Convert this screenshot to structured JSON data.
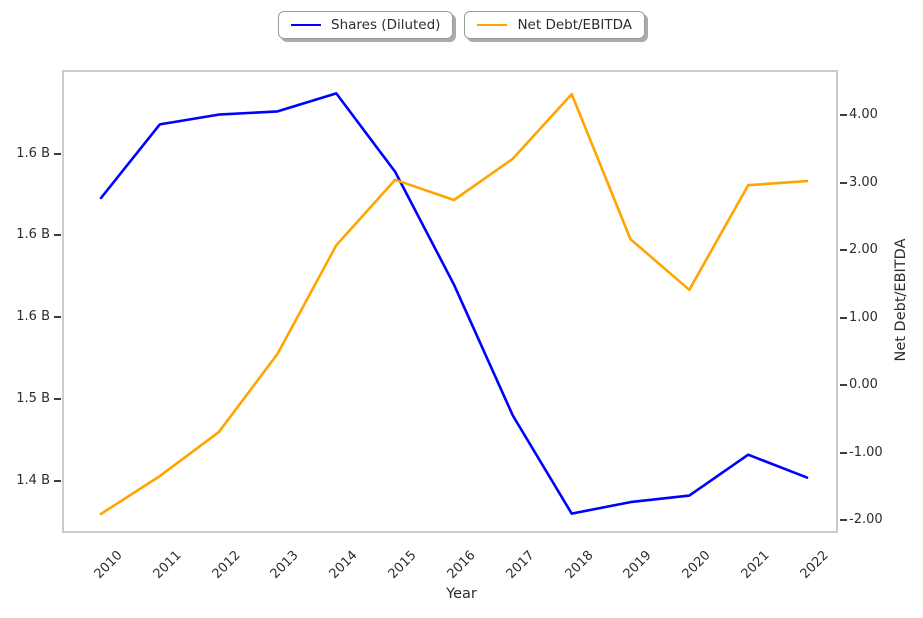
{
  "figure": {
    "xlabel": "Year",
    "right_ylabel": "Net Debt/EBITDA"
  },
  "legend": [
    {
      "label": "Shares (Diluted)",
      "color": "#0000ff"
    },
    {
      "label": "Net Debt/EBITDA",
      "color": "#ffa500"
    }
  ],
  "chart_data": {
    "type": "line",
    "title": "",
    "xlabel": "Year",
    "x": [
      2010,
      2011,
      2012,
      2013,
      2014,
      2015,
      2016,
      2017,
      2018,
      2019,
      2020,
      2021,
      2022
    ],
    "x_tick_labels": [
      "2010",
      "2011",
      "2012",
      "2013",
      "2014",
      "2015",
      "2016",
      "2017",
      "2018",
      "2019",
      "2020",
      "2021",
      "2022"
    ],
    "series": [
      {
        "name": "Shares (Diluted)",
        "yaxis": "left",
        "color": "#0000ff",
        "unit": "billions of shares",
        "values": [
          1.624,
          1.669,
          1.675,
          1.677,
          1.688,
          1.64,
          1.571,
          1.491,
          1.431,
          1.438,
          1.442,
          1.467,
          1.453
        ]
      },
      {
        "name": "Net Debt/EBITDA",
        "yaxis": "right",
        "color": "#ffa500",
        "unit": "ratio",
        "values": [
          -1.88,
          -1.32,
          -0.67,
          0.49,
          2.1,
          3.07,
          2.77,
          3.38,
          4.34,
          2.19,
          1.44,
          2.99,
          3.05
        ]
      }
    ],
    "left_axis": {
      "tick_values": [
        1.65,
        1.6,
        1.55,
        1.5,
        1.45
      ],
      "tick_labels": [
        "1.6 B",
        "1.6 B",
        "1.6 B",
        "1.5 B",
        "1.4 B"
      ],
      "range": [
        1.418,
        1.701
      ]
    },
    "right_axis": {
      "label": "Net Debt/EBITDA",
      "tick_values": [
        4,
        3,
        2,
        1,
        0,
        -1,
        -2
      ],
      "tick_labels": [
        "4.00",
        "3.00",
        "2.00",
        "1.00",
        "0.00",
        "-1.00",
        "-2.00"
      ],
      "range": [
        -2.19,
        4.67
      ]
    },
    "grid": false,
    "legend_position": "upper center outside plot"
  },
  "colors": {
    "blue_line": "#0000ff",
    "orange_line": "#ffa500",
    "spine": "#cbcbcb",
    "text": "#2d2d2d"
  }
}
